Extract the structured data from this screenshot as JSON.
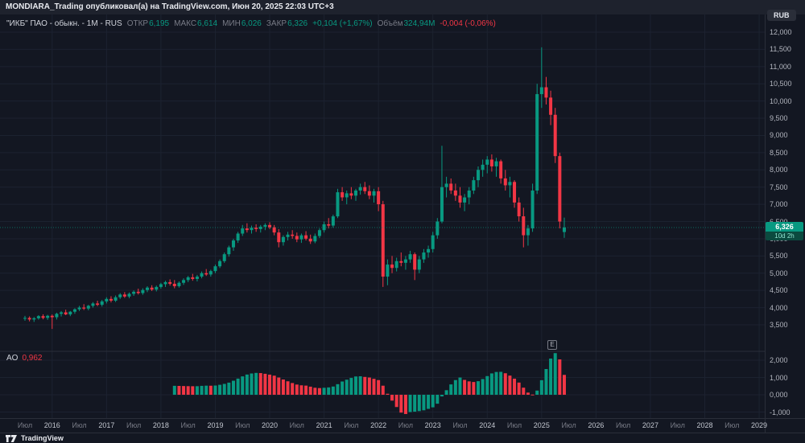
{
  "topbar": {
    "text": "MONDIARA_Trading опубликовал(а) на TradingView.com, Июн 20, 2025 22:03 UTC+3"
  },
  "legend": {
    "symbol": "\"ИКБ\" ПАО - обыкн. - 1М - RUS",
    "open_label": "ОТКР",
    "open": "6,195",
    "high_label": "МАКС",
    "high": "6,614",
    "low_label": "МИН",
    "low": "6,026",
    "close_label": "ЗАКР",
    "close": "6,326",
    "change": "+0,104 (+1,67%)",
    "volume_label": "Объём",
    "volume": "324,94M",
    "volume_change": "-0,004 (-0,06%)"
  },
  "indicator": {
    "name": "AO",
    "value": "0,962"
  },
  "price_axis": {
    "currency": "RUB",
    "ticks": [
      "12,000",
      "11,500",
      "11,000",
      "10,500",
      "10,000",
      "9,500",
      "9,000",
      "8,500",
      "8,000",
      "7,500",
      "7,000",
      "6,500",
      "6,000",
      "5,500",
      "5,000",
      "4,500",
      "4,000",
      "3,500"
    ],
    "tick_values": [
      12000,
      11500,
      11000,
      10500,
      10000,
      9500,
      9000,
      8500,
      8000,
      7500,
      7000,
      6500,
      6000,
      5500,
      5000,
      4500,
      4000,
      3500
    ],
    "last_price": "6,326",
    "countdown": "10d 2h"
  },
  "ao_axis": {
    "ticks": [
      "2,000",
      "1,000",
      "0,000",
      "-1,000"
    ],
    "tick_values": [
      2000,
      1000,
      0,
      -1000
    ]
  },
  "time_axis": {
    "labels": [
      {
        "t": "Июл",
        "m": 0
      },
      {
        "t": "2016",
        "m": 6
      },
      {
        "t": "Июл",
        "m": 12
      },
      {
        "t": "2017",
        "m": 18
      },
      {
        "t": "Июл",
        "m": 24
      },
      {
        "t": "2018",
        "m": 30
      },
      {
        "t": "Июл",
        "m": 36
      },
      {
        "t": "2019",
        "m": 42
      },
      {
        "t": "Июл",
        "m": 48
      },
      {
        "t": "2020",
        "m": 54
      },
      {
        "t": "Июл",
        "m": 60
      },
      {
        "t": "2021",
        "m": 66
      },
      {
        "t": "Июл",
        "m": 72
      },
      {
        "t": "2022",
        "m": 78
      },
      {
        "t": "Июл",
        "m": 84
      },
      {
        "t": "2023",
        "m": 90
      },
      {
        "t": "Июл",
        "m": 96
      },
      {
        "t": "2024",
        "m": 102
      },
      {
        "t": "Июл",
        "m": 108
      },
      {
        "t": "2025",
        "m": 114
      },
      {
        "t": "Июл",
        "m": 120
      },
      {
        "t": "2026",
        "m": 126
      },
      {
        "t": "Июл",
        "m": 132
      },
      {
        "t": "2027",
        "m": 138
      },
      {
        "t": "Июл",
        "m": 144
      },
      {
        "t": "2028",
        "m": 150
      },
      {
        "t": "Июл",
        "m": 156
      },
      {
        "t": "2029",
        "m": 162
      }
    ]
  },
  "markers": {
    "earnings": "E"
  },
  "footer": {
    "brand": "TradingView"
  },
  "colors": {
    "up": "#089981",
    "down": "#f23645",
    "bg": "#131722",
    "panel": "#1e222d",
    "grid": "#1c2230",
    "divider": "#2a2e39",
    "axis_text": "#b2b5be",
    "text": "#d1d4dc",
    "muted": "#787b86"
  },
  "chart_data": [
    {
      "type": "candlestick",
      "title": "\"ИКБ\" ПАО - обыкн. - 1М - RUS, monthly candles",
      "interval": "1M",
      "x_start": "2015-07",
      "ylabel": "RUB",
      "ylim": [
        3500,
        12000
      ],
      "note": "values in thousandths as displayed with decimal comma: 6326 renders as 6,326",
      "last_candle": {
        "open": "6,195",
        "high": "6,614",
        "low": "6,026",
        "close": "6,326"
      },
      "candles": [
        [
          3680,
          3760,
          3620,
          3700
        ],
        [
          3700,
          3745,
          3600,
          3655
        ],
        [
          3655,
          3725,
          3585,
          3690
        ],
        [
          3690,
          3780,
          3650,
          3752
        ],
        [
          3752,
          3805,
          3660,
          3702
        ],
        [
          3702,
          3790,
          3645,
          3762
        ],
        [
          3762,
          3800,
          3380,
          3720
        ],
        [
          3720,
          3852,
          3655,
          3820
        ],
        [
          3820,
          3900,
          3742,
          3862
        ],
        [
          3862,
          3940,
          3780,
          3802
        ],
        [
          3802,
          3902,
          3752,
          3880
        ],
        [
          3880,
          3980,
          3822,
          3950
        ],
        [
          3950,
          4050,
          3900,
          4002
        ],
        [
          4002,
          4100,
          3930,
          3972
        ],
        [
          3972,
          4080,
          3920,
          4052
        ],
        [
          4052,
          4160,
          4000,
          4120
        ],
        [
          4120,
          4200,
          4042,
          4082
        ],
        [
          4082,
          4220,
          4030,
          4180
        ],
        [
          4180,
          4300,
          4122,
          4252
        ],
        [
          4252,
          4330,
          4150,
          4202
        ],
        [
          4202,
          4352,
          4162,
          4300
        ],
        [
          4300,
          4420,
          4250,
          4380
        ],
        [
          4380,
          4450,
          4282,
          4322
        ],
        [
          4322,
          4440,
          4272,
          4400
        ],
        [
          4400,
          4500,
          4342,
          4460
        ],
        [
          4460,
          4550,
          4380,
          4422
        ],
        [
          4422,
          4560,
          4372,
          4510
        ],
        [
          4510,
          4620,
          4450,
          4580
        ],
        [
          4580,
          4650,
          4482,
          4522
        ],
        [
          4522,
          4640,
          4470,
          4600
        ],
        [
          4600,
          4720,
          4550,
          4680
        ],
        [
          4680,
          4780,
          4600,
          4740
        ],
        [
          4740,
          4820,
          4640,
          4692
        ],
        [
          4692,
          4800,
          4560,
          4622
        ],
        [
          4622,
          4760,
          4580,
          4720
        ],
        [
          4720,
          4850,
          4660,
          4800
        ],
        [
          4800,
          4920,
          4740,
          4880
        ],
        [
          4880,
          4980,
          4780,
          4832
        ],
        [
          4832,
          4950,
          4760,
          4900
        ],
        [
          4900,
          5050,
          4850,
          5000
        ],
        [
          5000,
          5120,
          4920,
          4962
        ],
        [
          4962,
          5100,
          4900,
          5060
        ],
        [
          5060,
          5250,
          5000,
          5200
        ],
        [
          5200,
          5400,
          5150,
          5350
        ],
        [
          5350,
          5600,
          5300,
          5550
        ],
        [
          5550,
          5800,
          5480,
          5750
        ],
        [
          5750,
          6000,
          5650,
          5950
        ],
        [
          5950,
          6200,
          5880,
          6150
        ],
        [
          6150,
          6400,
          6080,
          6300
        ],
        [
          6300,
          6450,
          6180,
          6252
        ],
        [
          6252,
          6380,
          6150,
          6322
        ],
        [
          6322,
          6420,
          6200,
          6282
        ],
        [
          6282,
          6400,
          6180,
          6350
        ],
        [
          6350,
          6450,
          6250,
          6400
        ],
        [
          6400,
          6480,
          6280,
          6332
        ],
        [
          6332,
          6400,
          6100,
          6182
        ],
        [
          6182,
          6280,
          5750,
          5900
        ],
        [
          5900,
          6100,
          5800,
          6050
        ],
        [
          6050,
          6200,
          5950,
          6120
        ],
        [
          6120,
          6250,
          6000,
          6082
        ],
        [
          6082,
          6180,
          5900,
          5982
        ],
        [
          5982,
          6150,
          5880,
          6100
        ],
        [
          6100,
          6220,
          5950,
          6002
        ],
        [
          6002,
          6120,
          5850,
          5922
        ],
        [
          5922,
          6150,
          5870,
          6080
        ],
        [
          6080,
          6300,
          6020,
          6250
        ],
        [
          6250,
          6500,
          6180,
          6420
        ],
        [
          6420,
          6600,
          6300,
          6382
        ],
        [
          6382,
          6700,
          6320,
          6650
        ],
        [
          6650,
          7450,
          6600,
          7350
        ],
        [
          7350,
          7500,
          7100,
          7202
        ],
        [
          7202,
          7400,
          7000,
          7320
        ],
        [
          7320,
          7500,
          7150,
          7252
        ],
        [
          7252,
          7450,
          7100,
          7400
        ],
        [
          7400,
          7600,
          7280,
          7500
        ],
        [
          7500,
          7650,
          7300,
          7382
        ],
        [
          7382,
          7550,
          7150,
          7252
        ],
        [
          7252,
          7450,
          7050,
          7380
        ],
        [
          7380,
          7500,
          6800,
          7002
        ],
        [
          7002,
          7100,
          4600,
          4900
        ],
        [
          4900,
          5400,
          4650,
          5250
        ],
        [
          5250,
          5500,
          5000,
          5152
        ],
        [
          5152,
          5450,
          5050,
          5350
        ],
        [
          5350,
          5600,
          5200,
          5302
        ],
        [
          5302,
          5500,
          5100,
          5400
        ],
        [
          5400,
          5650,
          5300,
          5550
        ],
        [
          5550,
          5600,
          4800,
          5102
        ],
        [
          5102,
          5500,
          5000,
          5400
        ],
        [
          5400,
          5700,
          5300,
          5600
        ],
        [
          5600,
          5800,
          5450,
          5700
        ],
        [
          5700,
          6200,
          5600,
          6100
        ],
        [
          6100,
          6600,
          6000,
          6500
        ],
        [
          6500,
          8700,
          6450,
          7500
        ],
        [
          7500,
          7800,
          7200,
          7600
        ],
        [
          7600,
          7750,
          7300,
          7402
        ],
        [
          7402,
          7600,
          7100,
          7252
        ],
        [
          7252,
          7500,
          6900,
          7052
        ],
        [
          7052,
          7300,
          6800,
          7200
        ],
        [
          7200,
          7500,
          7000,
          7400
        ],
        [
          7400,
          7800,
          7300,
          7700
        ],
        [
          7700,
          8100,
          7500,
          8000
        ],
        [
          8000,
          8300,
          7800,
          8150
        ],
        [
          8150,
          8400,
          7900,
          8300
        ],
        [
          8300,
          8450,
          7950,
          8102
        ],
        [
          8102,
          8350,
          7800,
          8250
        ],
        [
          8250,
          8300,
          7600,
          7752
        ],
        [
          7752,
          8000,
          7400,
          7552
        ],
        [
          7552,
          7800,
          7200,
          7650
        ],
        [
          7650,
          7700,
          6900,
          7052
        ],
        [
          7052,
          7200,
          6500,
          6652
        ],
        [
          6652,
          6900,
          5750,
          6102
        ],
        [
          6102,
          6400,
          5800,
          6300
        ],
        [
          6300,
          7600,
          6200,
          7400
        ],
        [
          7400,
          10500,
          7300,
          10200
        ],
        [
          10200,
          11560,
          9800,
          10400
        ],
        [
          10400,
          10700,
          9900,
          10100
        ],
        [
          10100,
          10300,
          9300,
          9600
        ],
        [
          9600,
          9800,
          8200,
          8400
        ],
        [
          8400,
          8500,
          6300,
          6500
        ],
        [
          6195,
          6614,
          6026,
          6326
        ]
      ]
    },
    {
      "type": "bar",
      "title": "AO (Awesome Oscillator), lower pane histogram",
      "derived_from": "SMA5(median) - SMA34(median) of candles above",
      "current_value": 0.962,
      "ylim": [
        -1.25,
        2.5
      ],
      "legend_position": "top-left of pane"
    }
  ]
}
